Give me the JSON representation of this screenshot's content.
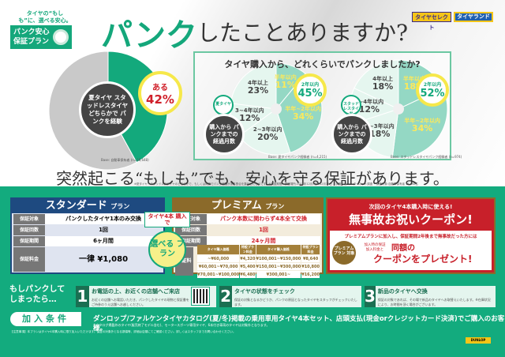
{
  "logo": {
    "tagline": "タイヤの“もしも”に、選べる安心。",
    "name": "パンク安心保証プラン"
  },
  "headline": {
    "emph": "パンク",
    "rest": "したことありますか?"
  },
  "brands": [
    "タイヤセレクト",
    "タイヤランド"
  ],
  "overall": {
    "center_label": "夏タイヤ スタッドレスタイヤ どちらかで パンクを経験",
    "bubble_label": "ある",
    "bubble_value": "42%",
    "value": 42,
    "base": "Base: 自動車保有者 (n=18,648)",
    "colors": {
      "yes": "#13a97c",
      "no": "#c9c9c9"
    }
  },
  "panel": {
    "title": "タイヤ購入から、どれくらいでパンクしましたか?",
    "charts": [
      {
        "tag": "夏タイヤ",
        "center": "購入から パンクまでの 経過月数",
        "highlight_label": "2年以内",
        "highlight_value": "45%",
        "base": "Base: 夏タイヤパンク経験者 (n=4,215)",
        "slices": [
          {
            "label": "半年以内",
            "value": 11,
            "text": "11%",
            "dark": true
          },
          {
            "label": "半年~2年以内",
            "value": 34,
            "text": "34%",
            "dark": true
          },
          {
            "label": "2~3年以内",
            "value": 20,
            "text": "20%",
            "dark": false
          },
          {
            "label": "3~4年以内",
            "value": 12,
            "text": "12%",
            "dark": false
          },
          {
            "label": "4年以上",
            "value": 23,
            "text": "23%",
            "dark": false
          }
        ]
      },
      {
        "tag": "スタッドレスタイヤ",
        "center": "購入から パンクまでの 経過月数",
        "highlight_label": "2年以内",
        "highlight_value": "52%",
        "base": "Base: スタッドレスタイヤパンク経験者 (n=974)",
        "slices": [
          {
            "label": "半年以内",
            "value": 18,
            "text": "18%",
            "dark": true
          },
          {
            "label": "半年~2年以内",
            "value": 34,
            "text": "34%",
            "dark": true
          },
          {
            "label": "2~3年以内",
            "value": 18,
            "text": "18%",
            "dark": false
          },
          {
            "label": "3~4年以内",
            "value": 12,
            "text": "12%",
            "dark": false
          },
          {
            "label": "4年以上",
            "value": 18,
            "text": "18%",
            "dark": false
          }
        ]
      }
    ]
  },
  "slogan": "突然起こる“もしも”でも、安心を守る保証があります。",
  "survey_note": "※夏タイヤ・スタッドレスタイヤのどちらかで、もしくは両方でパンク経験がある割合を集計したものです。※調査期間・調査場所:2018年12月3日~12月14日 ・調査方法:インターネット調査 ・調査対象:自動車保有者 18,648名",
  "standard": {
    "title": "スタンダード",
    "suffix": "プラン",
    "rows": [
      {
        "k": "保証対象",
        "v": "パンクしたタイヤ1本のみ交換"
      },
      {
        "k": "保証回数",
        "v": "1回"
      },
      {
        "k": "保証期間",
        "v": "6ヶ月間"
      },
      {
        "k": "保証料金",
        "v": "一律 ¥1,080"
      }
    ]
  },
  "choose": {
    "top": "タイヤ4本 購入で",
    "main": "選べる プラン"
  },
  "premium": {
    "title": "プレミアム",
    "suffix": "プラン",
    "rows": [
      {
        "k": "保証対象",
        "v": "パンク本数に関わらず4本全て交換"
      },
      {
        "k": "保証回数",
        "v": "1回"
      },
      {
        "k": "保証期間",
        "v": "24ヶ月間"
      }
    ],
    "fee_label": "保証料金",
    "fee_headers": [
      "タイヤ購入価格",
      "特設プラン料金",
      "タイヤ購入価格",
      "特設プラン料金"
    ],
    "fee_rows": [
      [
        "~¥60,000",
        "¥4,320",
        "¥100,001~¥150,000",
        "¥8,640"
      ],
      [
        "¥60,001~¥70,000",
        "¥5,400",
        "¥150,001~¥300,000",
        "¥10,800"
      ],
      [
        "¥70,001~¥100,000",
        "¥6,480",
        "¥300,001~",
        "¥16,200"
      ]
    ]
  },
  "coupon": {
    "sub": "次回のタイヤ4本購入時に使える!",
    "title": "無事故お祝いクーポン!",
    "desc": "プレミアムプランに加入し、保証期間2年後まで無事故だった方には",
    "small": "加入時の保証 加入料金と",
    "big1": "同額の",
    "big2": "クーポンをプレゼント!",
    "seal": "プレミアム プラン 対象"
  },
  "steps": {
    "lead": "もしパンクして しまったら…",
    "items": [
      {
        "n": "1",
        "title": "お電話の上、お近くの店舗へご来店",
        "desc": "お近くの店舗へお電話いただき、パンクしたタイヤの現物と保証書をご持参のうえ店舗へお越しください。"
      },
      {
        "n": "2",
        "title": "タイヤの状態をチェック",
        "desc": "保証の対象となるかどうか、パンクの原因となったタイヤをスタッフがチェックいたします。"
      },
      {
        "n": "3",
        "title": "新品のタイヤへ交換",
        "desc": "保証の対象であれば、その場で新品のタイヤへお取替えいたします。※在庫状況により、お時間を頂く場合がございます。"
      }
    ]
  },
  "conditions": {
    "label": "加入条件",
    "text": "ダンロップ/ファルケンタイヤカタログ(夏/冬)掲載の乗用車用タイヤ4本セット、店頭支払(現金orクレジットカード決済)でご購入のお客様。",
    "note": "※カタログ掲載外のタイヤ(販売終了モデル含む)、モータースポーツ専用タイヤ、6本付き車両のタイヤは対象外となります。"
  },
  "fine_print": "【注意事項】本プランはタイヤ4本購入時に限り加入いただけます。保証の対象外となる損傷等、詳細は店頭にてご確認ください。詳しくはスタッフまでお問い合わせください。",
  "dunlop": "DUNLOP"
}
